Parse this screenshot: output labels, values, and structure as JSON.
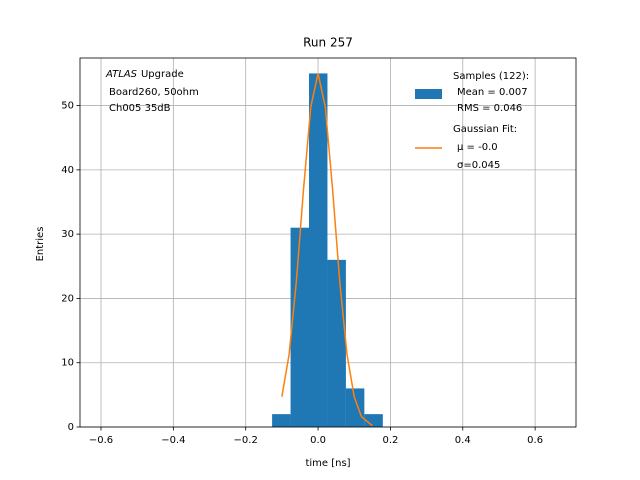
{
  "chart_data": {
    "type": "histogram",
    "title": "Run 257",
    "xlabel": "time [ns]",
    "ylabel": "Entries",
    "bins": [
      -0.127,
      -0.076,
      -0.025,
      0.026,
      0.077,
      0.128,
      0.179
    ],
    "counts": [
      2,
      31,
      55,
      26,
      6,
      2
    ],
    "color": "#1f77b4",
    "hist_legend": {
      "name": "Samples (122):",
      "stats": [
        "Mean = 0.007",
        "RMS = 0.046"
      ]
    },
    "fit": {
      "name": "Gaussian Fit:",
      "stats": [
        "μ = -0.0",
        "σ=0.045"
      ],
      "color": "#ff7f0e",
      "x": [
        -0.1,
        -0.08,
        -0.06,
        -0.04,
        -0.02,
        0,
        0.02,
        0.04,
        0.06,
        0.08,
        0.1,
        0.12,
        0.15
      ],
      "values": [
        4.7,
        11.3,
        22.6,
        37.1,
        49.8,
        55,
        49.8,
        37.1,
        22.6,
        11.3,
        4.7,
        1.6,
        0.2
      ]
    },
    "annotation_italic": "ATLAS",
    "annotation": [
      "Upgrade",
      "Board260, 50ohm",
      "Ch005 35dB"
    ],
    "xlim": [
      -0.658,
      0.713
    ],
    "ylim": [
      0,
      57.4
    ],
    "xticks": [
      {
        "value": -0.6,
        "label": "−0.6"
      },
      {
        "value": -0.4,
        "label": "−0.4"
      },
      {
        "value": -0.2,
        "label": "−0.2"
      },
      {
        "value": 0,
        "label": "0.0"
      },
      0.2,
      0.4,
      0.6
    ],
    "yticks": [
      0,
      10,
      20,
      30,
      40,
      50
    ],
    "grid": true,
    "legend": "upper right"
  }
}
